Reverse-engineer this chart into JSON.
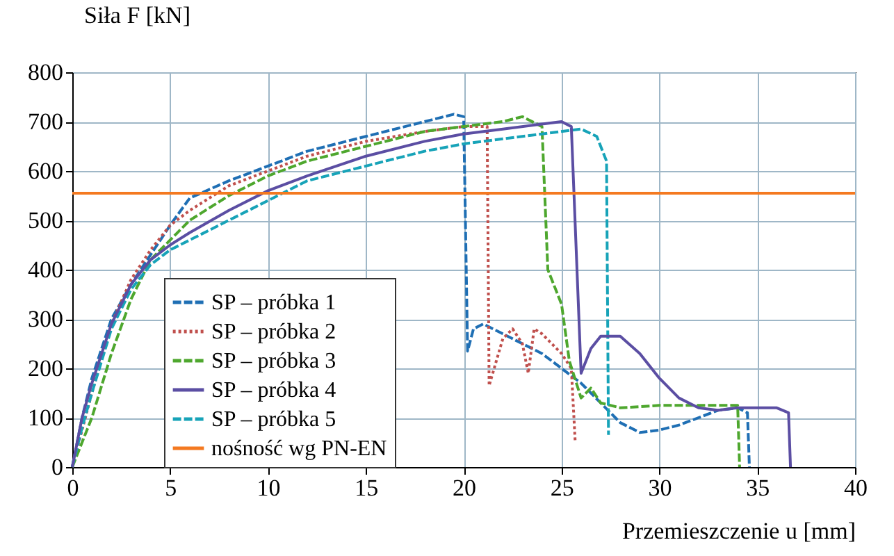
{
  "chart_data": {
    "type": "line",
    "xlabel": "Przemieszczenie u [mm]",
    "ylabel": "Siła F [kN]",
    "xlim": [
      0,
      40
    ],
    "xticks": [
      0,
      5,
      10,
      15,
      20,
      25,
      30,
      35,
      40
    ],
    "ylim": [
      0,
      800
    ],
    "yticks": [
      0,
      100,
      200,
      300,
      400,
      500,
      600,
      700,
      800
    ],
    "grid": true,
    "legend": "bottom left",
    "series": [
      {
        "name": "SP – próbka 1",
        "color": "#1f6fb4",
        "line_style": "dashed",
        "x": [
          0,
          0.5,
          1,
          2,
          3,
          4,
          5,
          6,
          8,
          10,
          12,
          15,
          18,
          19.5,
          20,
          20.2,
          20.5,
          21,
          22,
          23,
          24,
          25,
          26,
          27,
          28,
          29,
          30,
          31,
          32,
          33,
          34,
          34.5,
          34.6
        ],
        "values": [
          0,
          100,
          180,
          300,
          370,
          430,
          490,
          545,
          580,
          610,
          640,
          670,
          700,
          715,
          710,
          235,
          280,
          290,
          270,
          250,
          230,
          200,
          170,
          130,
          90,
          70,
          75,
          85,
          100,
          115,
          120,
          110,
          0
        ]
      },
      {
        "name": "SP – próbka 2",
        "color": "#c0504d",
        "line_style": "dotted",
        "x": [
          0,
          1,
          2,
          3,
          4,
          5,
          6,
          8,
          10,
          12,
          15,
          18,
          20,
          21.2,
          21.3,
          22,
          22.5,
          23,
          23.3,
          23.6,
          24,
          25,
          25.5,
          25.7
        ],
        "values": [
          0,
          150,
          290,
          380,
          440,
          490,
          520,
          570,
          600,
          630,
          660,
          680,
          690,
          690,
          165,
          260,
          280,
          250,
          190,
          280,
          270,
          230,
          200,
          50
        ]
      },
      {
        "name": "SP – próbka 3",
        "color": "#4ea72e",
        "line_style": "dashed",
        "x": [
          0,
          1,
          2,
          3,
          4,
          5,
          6,
          8,
          10,
          12,
          15,
          18,
          20,
          22,
          23,
          24,
          24.3,
          25,
          25.4,
          26,
          26.5,
          27,
          28,
          30,
          32,
          34,
          34.1
        ],
        "values": [
          0,
          100,
          230,
          340,
          420,
          460,
          500,
          550,
          590,
          620,
          650,
          680,
          690,
          700,
          710,
          690,
          400,
          330,
          215,
          140,
          160,
          130,
          120,
          125,
          125,
          125,
          0
        ]
      },
      {
        "name": "SP – próbka 4",
        "color": "#5b4ea3",
        "line_style": "solid",
        "x": [
          0,
          0.5,
          1,
          2,
          3,
          4,
          5,
          6,
          8,
          10,
          12,
          15,
          18,
          20,
          22,
          24,
          25,
          25.5,
          26,
          26.5,
          27,
          28,
          29,
          30,
          31,
          32,
          33,
          34,
          36,
          36.6,
          36.7
        ],
        "values": [
          0,
          100,
          170,
          290,
          370,
          420,
          450,
          475,
          520,
          560,
          590,
          630,
          660,
          675,
          685,
          695,
          700,
          690,
          190,
          240,
          265,
          265,
          230,
          180,
          140,
          120,
          115,
          120,
          120,
          110,
          0
        ]
      },
      {
        "name": "SP – próbka 5",
        "color": "#17a3b8",
        "line_style": "dashed",
        "x": [
          0,
          0.5,
          1,
          2,
          3,
          4,
          5,
          6,
          8,
          10,
          12,
          15,
          18,
          20,
          22,
          24,
          26,
          26.8,
          27.3,
          27.4
        ],
        "values": [
          0,
          80,
          150,
          280,
          360,
          410,
          440,
          460,
          500,
          540,
          580,
          610,
          640,
          655,
          665,
          675,
          685,
          670,
          620,
          65
        ]
      }
    ],
    "ref_lines": [
      {
        "axis": "y",
        "value": 555,
        "label": "nośność wg PN-EN",
        "color": "#f47920"
      }
    ]
  }
}
